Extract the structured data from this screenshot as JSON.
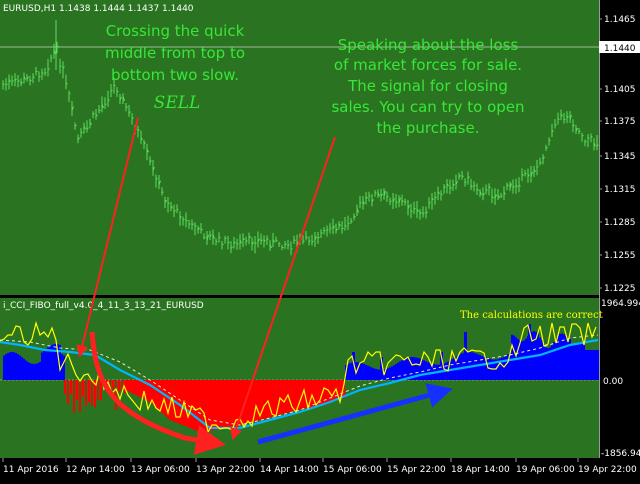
{
  "colors": {
    "background": "#2a7320",
    "candles": "#5fdc5f",
    "grid": "#4f8f45",
    "histogram_positive": "#0000ff",
    "histogram_negative": "#ff0000",
    "cci_line": "#ffff00",
    "slow_line": "#00b4ff",
    "annotation_text": "#39e639",
    "calc_text": "#ffff00",
    "red_arrow": "#ff2020",
    "blue_arrow": "#1530ff"
  },
  "main_chart": {
    "title": "EURUSD,H1  1.1438 1.1444 1.1437 1.1440",
    "current_price": "1.1440",
    "price_ticks": [
      "1.1465",
      "1.1440",
      "1.1405",
      "1.1375",
      "1.1345",
      "1.1315",
      "1.1285",
      "1.1255",
      "1.1225"
    ]
  },
  "indicator": {
    "title": "i_CCI_FIBO_full_v4.0_4_11_3_13_21_EURUSD",
    "top_value": "1964.994",
    "zero_value": "0.00",
    "bottom_value": "-1856.94",
    "calc_note": "The calculations are correct"
  },
  "annotations": {
    "left_text": [
      "Crossing the quick",
      "middle from top to",
      "bottom two slow."
    ],
    "sell_label": "SELL",
    "right_text": [
      "Speaking about the loss",
      "of market forces for sale.",
      "The signal for closing",
      "sales. You can try to open",
      "the purchase."
    ]
  },
  "time_axis": [
    "11 Apr 2016",
    "12 Apr 14:00",
    "13 Apr 06:00",
    "13 Apr 22:00",
    "14 Apr 14:00",
    "15 Apr 06:00",
    "15 Apr 22:00",
    "18 Apr 14:00",
    "19 Apr 06:00",
    "19 Apr 22:00"
  ]
}
